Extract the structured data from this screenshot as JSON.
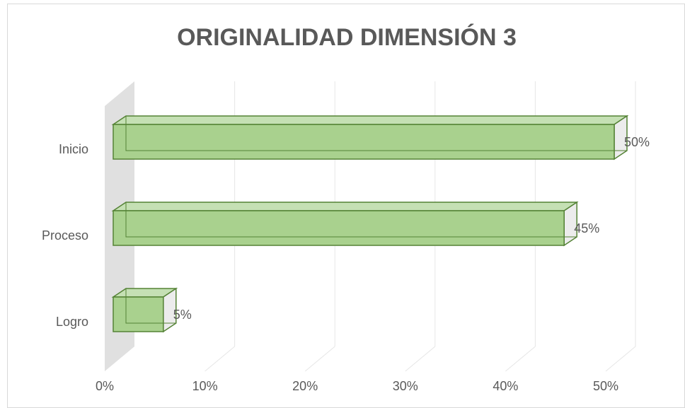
{
  "chart_data": {
    "type": "bar3d_horizontal",
    "title": "ORIGINALIDAD DIMENSIÓN 3",
    "categories": [
      "Inicio",
      "Proceso",
      "Logro"
    ],
    "values": [
      50,
      45,
      5
    ],
    "value_labels": [
      "50%",
      "45%",
      "5%"
    ],
    "color": "#a9d18e",
    "xlim": [
      0,
      50
    ],
    "xticks": [
      {
        "value": 0,
        "label": "0%"
      },
      {
        "value": 10,
        "label": "10%"
      },
      {
        "value": 20,
        "label": "20%"
      },
      {
        "value": 30,
        "label": "30%"
      },
      {
        "value": 40,
        "label": "40%"
      },
      {
        "value": 50,
        "label": "50%"
      }
    ],
    "grid": true
  }
}
